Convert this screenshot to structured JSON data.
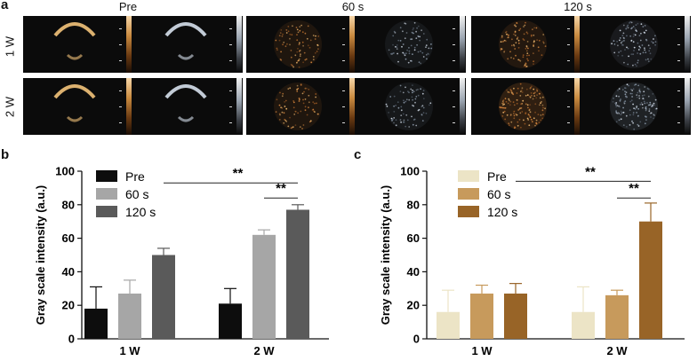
{
  "panels": {
    "a": {
      "letter": "a",
      "columns": [
        "Pre",
        "60 s",
        "120 s"
      ],
      "rows": [
        "1 W",
        "2 W"
      ]
    },
    "b": {
      "letter": "b",
      "significance": [
        "**",
        "**"
      ]
    },
    "c": {
      "letter": "c",
      "significance": [
        "**",
        "**"
      ]
    }
  },
  "chart_data": [
    {
      "type": "bar",
      "panel": "b",
      "categories": [
        "1 W",
        "2 W"
      ],
      "ylabel": "Gray scale intensity (a.u.)",
      "ylim": [
        0,
        100
      ],
      "yticks": [
        0,
        20,
        40,
        60,
        80,
        100
      ],
      "legend": "top-left",
      "series": [
        {
          "name": "Pre",
          "color": "#0d0d0d",
          "values": [
            18,
            21
          ],
          "errors": [
            13,
            9
          ]
        },
        {
          "name": "60 s",
          "color": "#a6a6a6",
          "values": [
            27,
            62
          ],
          "errors": [
            8,
            3
          ]
        },
        {
          "name": "120 s",
          "color": "#5a5a5a",
          "values": [
            50,
            77
          ],
          "errors": [
            4,
            3
          ]
        }
      ]
    },
    {
      "type": "bar",
      "panel": "c",
      "categories": [
        "1 W",
        "2 W"
      ],
      "ylabel": "Gray scale intensity (a.u.)",
      "ylim": [
        0,
        100
      ],
      "yticks": [
        0,
        20,
        40,
        60,
        80,
        100
      ],
      "legend": "top-left",
      "series": [
        {
          "name": "Pre",
          "color": "#ece4c6",
          "values": [
            16,
            16
          ],
          "errors": [
            13,
            15
          ]
        },
        {
          "name": "60 s",
          "color": "#c79a5c",
          "values": [
            27,
            26
          ],
          "errors": [
            5,
            3
          ]
        },
        {
          "name": "120 s",
          "color": "#986427",
          "values": [
            27,
            70
          ],
          "errors": [
            6,
            11
          ]
        }
      ]
    }
  ]
}
